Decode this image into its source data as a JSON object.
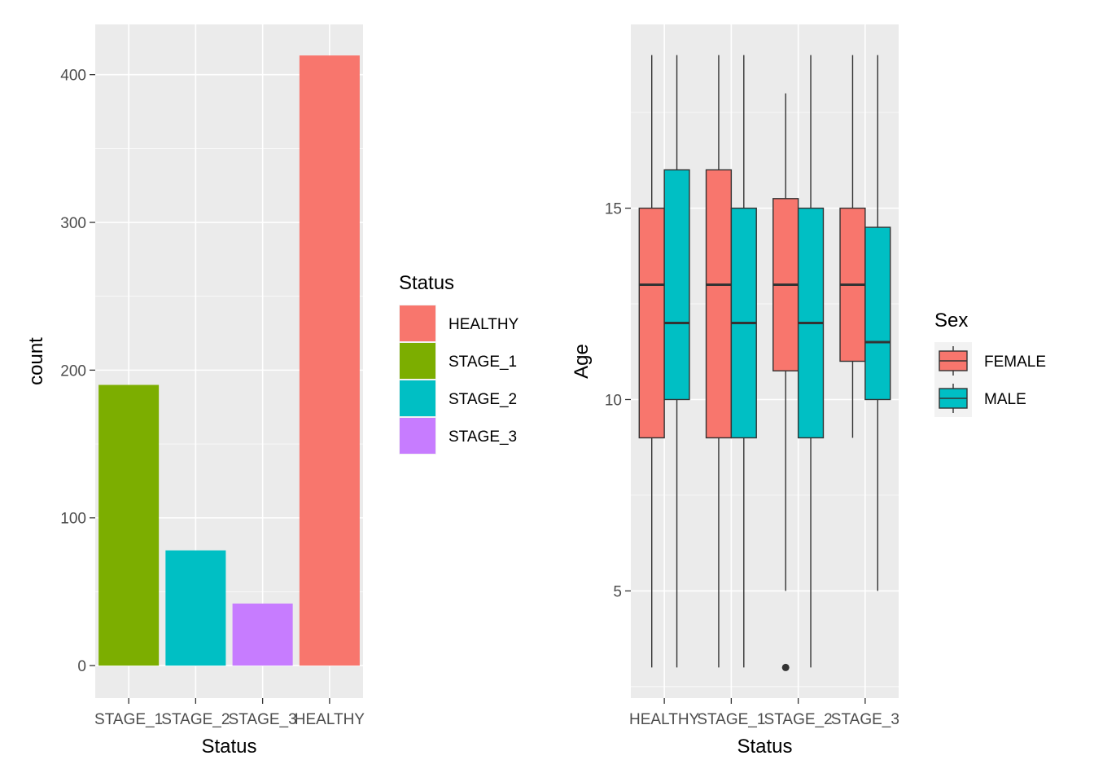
{
  "chart_data": [
    {
      "type": "bar",
      "categories": [
        "STAGE_1",
        "STAGE_2",
        "STAGE_3",
        "HEALTHY"
      ],
      "values": [
        190,
        78,
        42,
        413
      ],
      "colors": [
        "#7CAE00",
        "#00BFC4",
        "#C77CFF",
        "#F8766D"
      ],
      "xlabel": "Status",
      "ylabel": "count",
      "ylim": [
        -22,
        434
      ],
      "yticks": [
        0,
        100,
        200,
        300,
        400
      ],
      "grid": true,
      "legend": {
        "title": "Status",
        "placement": "right",
        "items": [
          {
            "label": "HEALTHY",
            "color": "#F8766D"
          },
          {
            "label": "STAGE_1",
            "color": "#7CAE00"
          },
          {
            "label": "STAGE_2",
            "color": "#00BFC4"
          },
          {
            "label": "STAGE_3",
            "color": "#C77CFF"
          }
        ]
      }
    },
    {
      "type": "boxplot",
      "categories": [
        "HEALTHY",
        "STAGE_1",
        "STAGE_2",
        "STAGE_3"
      ],
      "xlabel": "Status",
      "ylabel": "Age",
      "ylim": [
        2.2,
        19.8
      ],
      "yticks": [
        5,
        10,
        15
      ],
      "grid": true,
      "series": [
        {
          "name": "FEMALE",
          "color": "#F8766D",
          "boxes": [
            {
              "min": 3,
              "q1": 9,
              "median": 13,
              "q3": 15,
              "max": 19,
              "outliers": []
            },
            {
              "min": 3,
              "q1": 9,
              "median": 13,
              "q3": 16,
              "max": 19,
              "outliers": []
            },
            {
              "min": 5,
              "q1": 10.75,
              "median": 13,
              "q3": 15.25,
              "max": 18,
              "outliers": [
                3
              ]
            },
            {
              "min": 9,
              "q1": 11,
              "median": 13,
              "q3": 15,
              "max": 19,
              "outliers": []
            }
          ]
        },
        {
          "name": "MALE",
          "color": "#00BFC4",
          "boxes": [
            {
              "min": 3,
              "q1": 10,
              "median": 12,
              "q3": 16,
              "max": 19,
              "outliers": []
            },
            {
              "min": 3,
              "q1": 9,
              "median": 12,
              "q3": 15,
              "max": 19,
              "outliers": []
            },
            {
              "min": 3,
              "q1": 9,
              "median": 12,
              "q3": 15,
              "max": 19,
              "outliers": []
            },
            {
              "min": 5,
              "q1": 10,
              "median": 11.5,
              "q3": 14.5,
              "max": 19,
              "outliers": []
            }
          ]
        }
      ],
      "legend": {
        "title": "Sex",
        "placement": "right",
        "items": [
          {
            "label": "FEMALE",
            "color": "#F8766D"
          },
          {
            "label": "MALE",
            "color": "#00BFC4"
          }
        ]
      }
    }
  ]
}
